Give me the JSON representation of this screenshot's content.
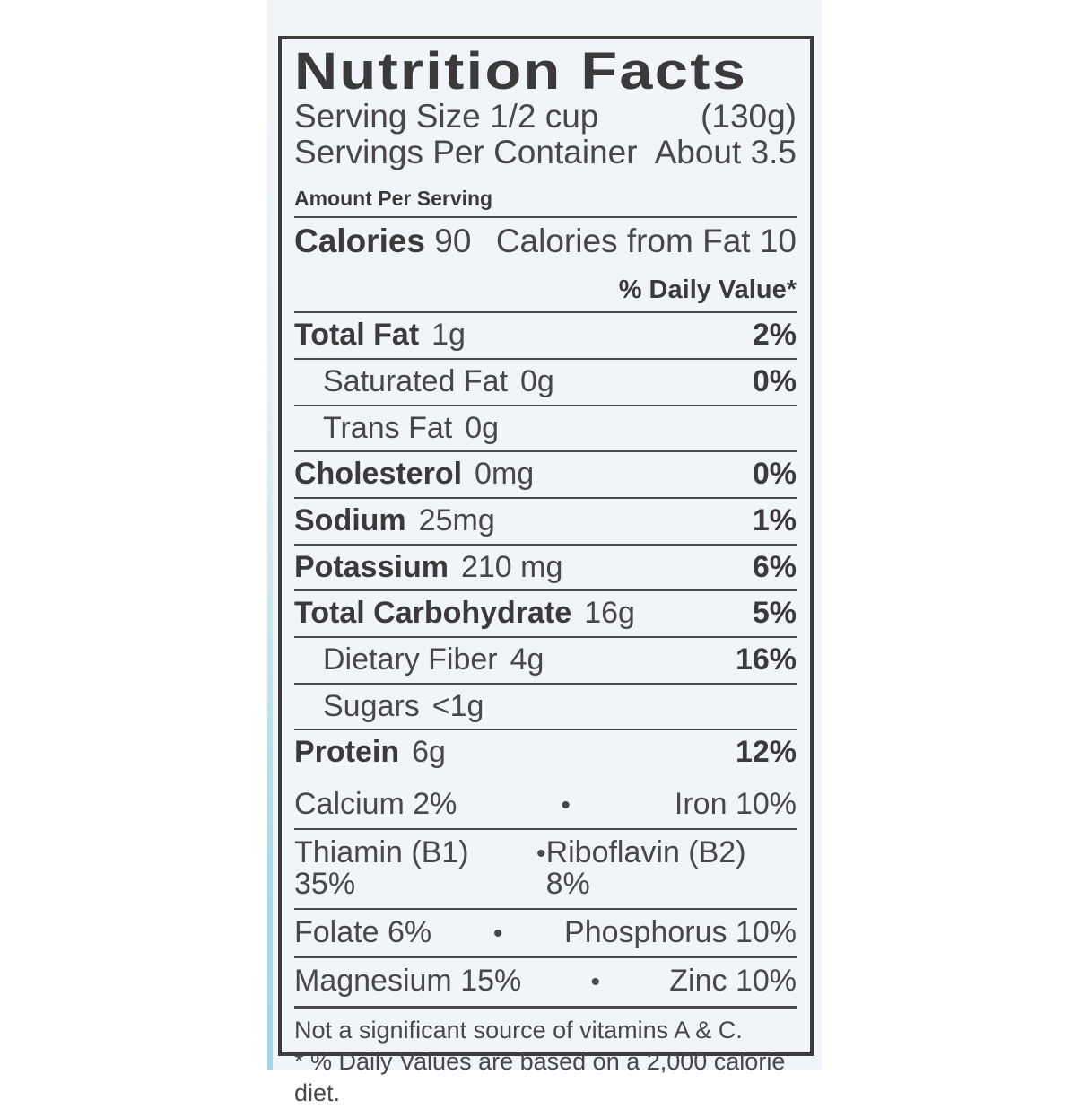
{
  "label": {
    "title": "Nutrition Facts",
    "serving": {
      "size_label": "Serving Size 1/2 cup",
      "size_weight": "(130g)",
      "per_container_label": "Servings Per Container",
      "per_container_value": "About 3.5"
    },
    "amount_per_serving": "Amount Per Serving",
    "calories": {
      "label": "Calories",
      "value": "90",
      "from_fat": "Calories from Fat 10"
    },
    "daily_value_header": "% Daily Value*",
    "nutrients": [
      {
        "name": "Total Fat",
        "amount": "1g",
        "dv": "2%"
      },
      {
        "name": "Saturated Fat",
        "amount": "0g",
        "dv": "0%"
      },
      {
        "name": "Trans Fat",
        "amount": "0g",
        "dv": ""
      },
      {
        "name": "Cholesterol",
        "amount": "0mg",
        "dv": "0%"
      },
      {
        "name": "Sodium",
        "amount": "25mg",
        "dv": "1%"
      },
      {
        "name": "Potassium",
        "amount": "210 mg",
        "dv": "6%"
      },
      {
        "name": "Total Carbohydrate",
        "amount": "16g",
        "dv": "5%"
      },
      {
        "name": "Dietary Fiber",
        "amount": "4g",
        "dv": "16%"
      },
      {
        "name": "Sugars",
        "amount": "<1g",
        "dv": ""
      },
      {
        "name": "Protein",
        "amount": "6g",
        "dv": "12%"
      }
    ],
    "bullet": "•",
    "micronutrients": [
      {
        "left": "Calcium 2%",
        "right": "Iron 10%"
      },
      {
        "left": "Thiamin (B1) 35%",
        "right": "Riboflavin (B2) 8%"
      },
      {
        "left": "Folate 6%",
        "right": "Phosphorus 10%"
      },
      {
        "left": "Magnesium 15%",
        "right": "Zinc 10%"
      }
    ],
    "footnotes": {
      "line1": "Not a significant source of vitamins A & C.",
      "line2": "* % Daily Values are based on a 2,000 calorie diet."
    }
  },
  "colors": {
    "page_bg": "#ffffff",
    "label_bg": "#f1f4f9",
    "text": "#484848",
    "text_bold": "#3a3a3a",
    "rule": "#4a4a4a",
    "thick_bar": "#2d2a27",
    "photo_edge": "#a9dcea"
  }
}
